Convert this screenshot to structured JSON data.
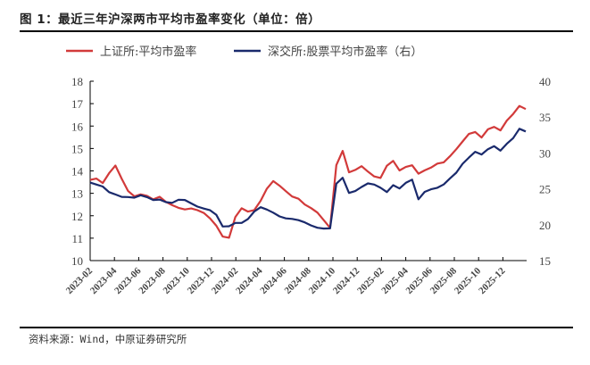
{
  "header": {
    "title": "图 1：最近三年沪深两市平均市盈率变化（单位：倍）"
  },
  "footer": {
    "source": "资料来源：Wind，中原证券研究所"
  },
  "colors": {
    "sh_series": "#d23a3a",
    "sz_series": "#1a2a6c",
    "axis": "#000000",
    "text": "#444444"
  },
  "chart_data": {
    "type": "line",
    "title": "最近三年沪深两市平均市盈率变化（单位：倍）",
    "xlabel": "",
    "ylabel_left": "上证所:平均市盈率",
    "ylabel_right": "深交所:股票平均市盈率（右）",
    "ylim_left": [
      10,
      18
    ],
    "ylim_right": [
      15,
      40
    ],
    "yticks_left": [
      10,
      11,
      12,
      13,
      14,
      15,
      16,
      17,
      18
    ],
    "yticks_right": [
      15,
      20,
      25,
      30,
      35,
      40
    ],
    "xticks": [
      "2023-02",
      "2023-04",
      "2023-06",
      "2023-08",
      "2023-10",
      "2023-12",
      "2024-02",
      "2024-04",
      "2024-06",
      "2024-08",
      "2024-10",
      "2024-12",
      "2025-02",
      "2025-04",
      "2025-06",
      "2025-08",
      "2025-10",
      "2025-12"
    ],
    "legend_position": "top",
    "grid": false,
    "x": [
      "2023-02",
      "2023-03",
      "2023-03b",
      "2023-04",
      "2023-04b",
      "2023-05",
      "2023-05b",
      "2023-06",
      "2023-06b",
      "2023-07",
      "2023-07b",
      "2023-08",
      "2023-08b",
      "2023-09",
      "2023-09b",
      "2023-10",
      "2023-10b",
      "2023-11",
      "2023-11b",
      "2023-12",
      "2023-12b",
      "2024-01",
      "2024-01b",
      "2024-02",
      "2024-02b",
      "2024-03",
      "2024-03b",
      "2024-04",
      "2024-04b",
      "2024-05",
      "2024-05b",
      "2024-06",
      "2024-06b",
      "2024-07",
      "2024-07b",
      "2024-08",
      "2024-08b",
      "2024-09",
      "2024-09b",
      "2024-10",
      "2024-10b",
      "2024-11",
      "2024-11b",
      "2024-12",
      "2024-12b",
      "2025-01",
      "2025-01b",
      "2025-02",
      "2025-02b",
      "2025-03",
      "2025-03b",
      "2025-04",
      "2025-04b",
      "2025-05",
      "2025-05b",
      "2025-06",
      "2025-06b",
      "2025-07",
      "2025-07b",
      "2025-08",
      "2025-08b",
      "2025-09",
      "2025-09b",
      "2025-10",
      "2025-10b",
      "2025-11",
      "2025-11b",
      "2025-12",
      "2025-12b",
      "2026-01"
    ],
    "series": [
      {
        "name": "上证所:平均市盈率",
        "axis": "left",
        "values": [
          13.6,
          13.7,
          13.5,
          13.9,
          14.2,
          13.6,
          13.1,
          12.9,
          13.0,
          12.9,
          12.7,
          12.8,
          12.6,
          12.5,
          12.4,
          12.3,
          12.3,
          12.2,
          12.1,
          11.9,
          11.6,
          11.1,
          11.0,
          11.9,
          12.3,
          12.2,
          12.3,
          12.7,
          13.2,
          13.5,
          13.3,
          13.1,
          12.9,
          12.8,
          12.5,
          12.3,
          12.1,
          11.8,
          11.5,
          14.3,
          14.9,
          13.9,
          14.0,
          14.2,
          14.0,
          13.8,
          13.7,
          14.2,
          14.4,
          14.0,
          14.2,
          14.3,
          13.9,
          14.0,
          14.1,
          14.3,
          14.4,
          14.7,
          15.0,
          15.3,
          15.6,
          15.7,
          15.5,
          15.9,
          16.0,
          15.8,
          16.2,
          16.5,
          16.9,
          16.8
        ]
      },
      {
        "name": "深交所:股票平均市盈率（右）",
        "axis": "right",
        "values": [
          26.0,
          25.6,
          25.2,
          24.4,
          24.2,
          24.0,
          24.0,
          23.8,
          24.0,
          23.7,
          23.4,
          23.6,
          23.3,
          23.1,
          23.4,
          23.3,
          22.9,
          22.6,
          22.4,
          22.1,
          21.3,
          19.6,
          19.7,
          20.3,
          20.4,
          20.9,
          21.8,
          22.3,
          22.0,
          21.7,
          21.3,
          21.0,
          20.8,
          20.5,
          20.2,
          19.9,
          19.7,
          19.6,
          19.5,
          25.6,
          26.4,
          24.4,
          24.8,
          25.4,
          25.8,
          25.5,
          25.0,
          24.5,
          25.6,
          25.2,
          25.9,
          26.2,
          23.4,
          24.5,
          25.0,
          25.3,
          25.7,
          26.4,
          27.1,
          28.4,
          29.4,
          30.3,
          29.9,
          30.5,
          30.8,
          30.2,
          31.3,
          32.2,
          33.5,
          33.0
        ]
      }
    ]
  },
  "legend": {
    "items": [
      {
        "label": "上证所:平均市盈率",
        "color": "#d23a3a"
      },
      {
        "label": "深交所:股票平均市盈率（右）",
        "color": "#1a2a6c"
      }
    ]
  }
}
